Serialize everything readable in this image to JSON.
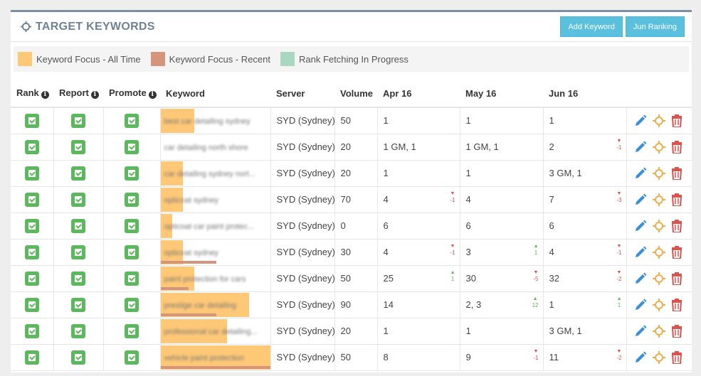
{
  "panel": {
    "title": "TARGET KEYWORDS"
  },
  "buttons": {
    "add_keyword": "Add Keyword",
    "jun_ranking": "Jun Ranking"
  },
  "legend": [
    {
      "label": "Keyword Focus - All Time",
      "color": "#ffc876"
    },
    {
      "label": "Keyword Focus - Recent",
      "color": "#d4957b"
    },
    {
      "label": "Rank Fetching In Progress",
      "color": "#a8d8c0"
    }
  ],
  "columns": {
    "rank": "Rank",
    "report": "Report",
    "promote": "Promote",
    "keyword": "Keyword",
    "server": "Server",
    "volume": "Volume",
    "m1": "Apr 16",
    "m2": "May 16",
    "m3": "Jun 16"
  },
  "rows": [
    {
      "keyword": "best car detailing sydney",
      "focus_all": 0.3,
      "focus_recent": 0,
      "server": "SYD (Sydney)",
      "volume": "50",
      "m1": "1",
      "m1d": "",
      "m1dir": "",
      "m2": "1",
      "m2d": "",
      "m2dir": "",
      "m3": "1",
      "m3d": "",
      "m3dir": ""
    },
    {
      "keyword": "car detailing north shore",
      "focus_all": 0,
      "focus_recent": 0,
      "server": "SYD (Sydney)",
      "volume": "20",
      "m1": "1 GM, 1",
      "m1d": "",
      "m1dir": "",
      "m2": "1 GM, 1",
      "m2d": "",
      "m2dir": "",
      "m3": "2",
      "m3d": "-1",
      "m3dir": "down"
    },
    {
      "keyword": "car detailing sydney nort...",
      "focus_all": 0.2,
      "focus_recent": 0,
      "server": "SYD (Sydney)",
      "volume": "20",
      "m1": "1",
      "m1d": "",
      "m1dir": "",
      "m2": "1",
      "m2d": "",
      "m2dir": "",
      "m3": "3 GM, 1",
      "m3d": "",
      "m3dir": ""
    },
    {
      "keyword": "opticoat sydney",
      "focus_all": 0.2,
      "focus_recent": 0,
      "server": "SYD (Sydney)",
      "volume": "70",
      "m1": "4",
      "m1d": "-1",
      "m1dir": "down",
      "m2": "4",
      "m2d": "",
      "m2dir": "",
      "m3": "7",
      "m3d": "-3",
      "m3dir": "down"
    },
    {
      "keyword": "opticoat car paint protec...",
      "focus_all": 0.1,
      "focus_recent": 0,
      "server": "SYD (Sydney)",
      "volume": "0",
      "m1": "6",
      "m1d": "",
      "m1dir": "",
      "m2": "6",
      "m2d": "",
      "m2dir": "",
      "m3": "6",
      "m3d": "",
      "m3dir": ""
    },
    {
      "keyword": "opticoat sydney",
      "focus_all": 0.2,
      "focus_recent": 0.5,
      "server": "SYD (Sydney)",
      "volume": "30",
      "m1": "4",
      "m1d": "-1",
      "m1dir": "down",
      "m2": "3",
      "m2d": "1",
      "m2dir": "up",
      "m3": "4",
      "m3d": "-1",
      "m3dir": "down"
    },
    {
      "keyword": "paint protection for cars",
      "focus_all": 0.3,
      "focus_recent": 0.25,
      "server": "SYD (Sydney)",
      "volume": "50",
      "m1": "25",
      "m1d": "1",
      "m1dir": "up",
      "m2": "30",
      "m2d": "-5",
      "m2dir": "down",
      "m3": "32",
      "m3d": "-2",
      "m3dir": "down"
    },
    {
      "keyword": "prestige car detailing",
      "focus_all": 0.8,
      "focus_recent": 0.5,
      "server": "SYD (Sydney)",
      "volume": "90",
      "m1": "14",
      "m1d": "",
      "m1dir": "",
      "m2": "2, 3",
      "m2d": "12",
      "m2dir": "up",
      "m3": "1",
      "m3d": "1",
      "m3dir": "up"
    },
    {
      "keyword": "professional car detailing...",
      "focus_all": 0.6,
      "focus_recent": 0,
      "server": "SYD (Sydney)",
      "volume": "20",
      "m1": "1",
      "m1d": "",
      "m1dir": "",
      "m2": "1",
      "m2d": "",
      "m2dir": "",
      "m3": "3 GM, 1",
      "m3d": "",
      "m3dir": ""
    },
    {
      "keyword": "vehicle paint protection",
      "focus_all": 1.0,
      "focus_recent": 1.0,
      "server": "SYD (Sydney)",
      "volume": "50",
      "m1": "8",
      "m1d": "",
      "m1dir": "",
      "m2": "9",
      "m2d": "-1",
      "m2dir": "down",
      "m3": "11",
      "m3d": "-2",
      "m3dir": "down"
    }
  ],
  "icons": {
    "edit": "pencil-icon",
    "target": "crosshair-icon",
    "delete": "trash-icon"
  }
}
